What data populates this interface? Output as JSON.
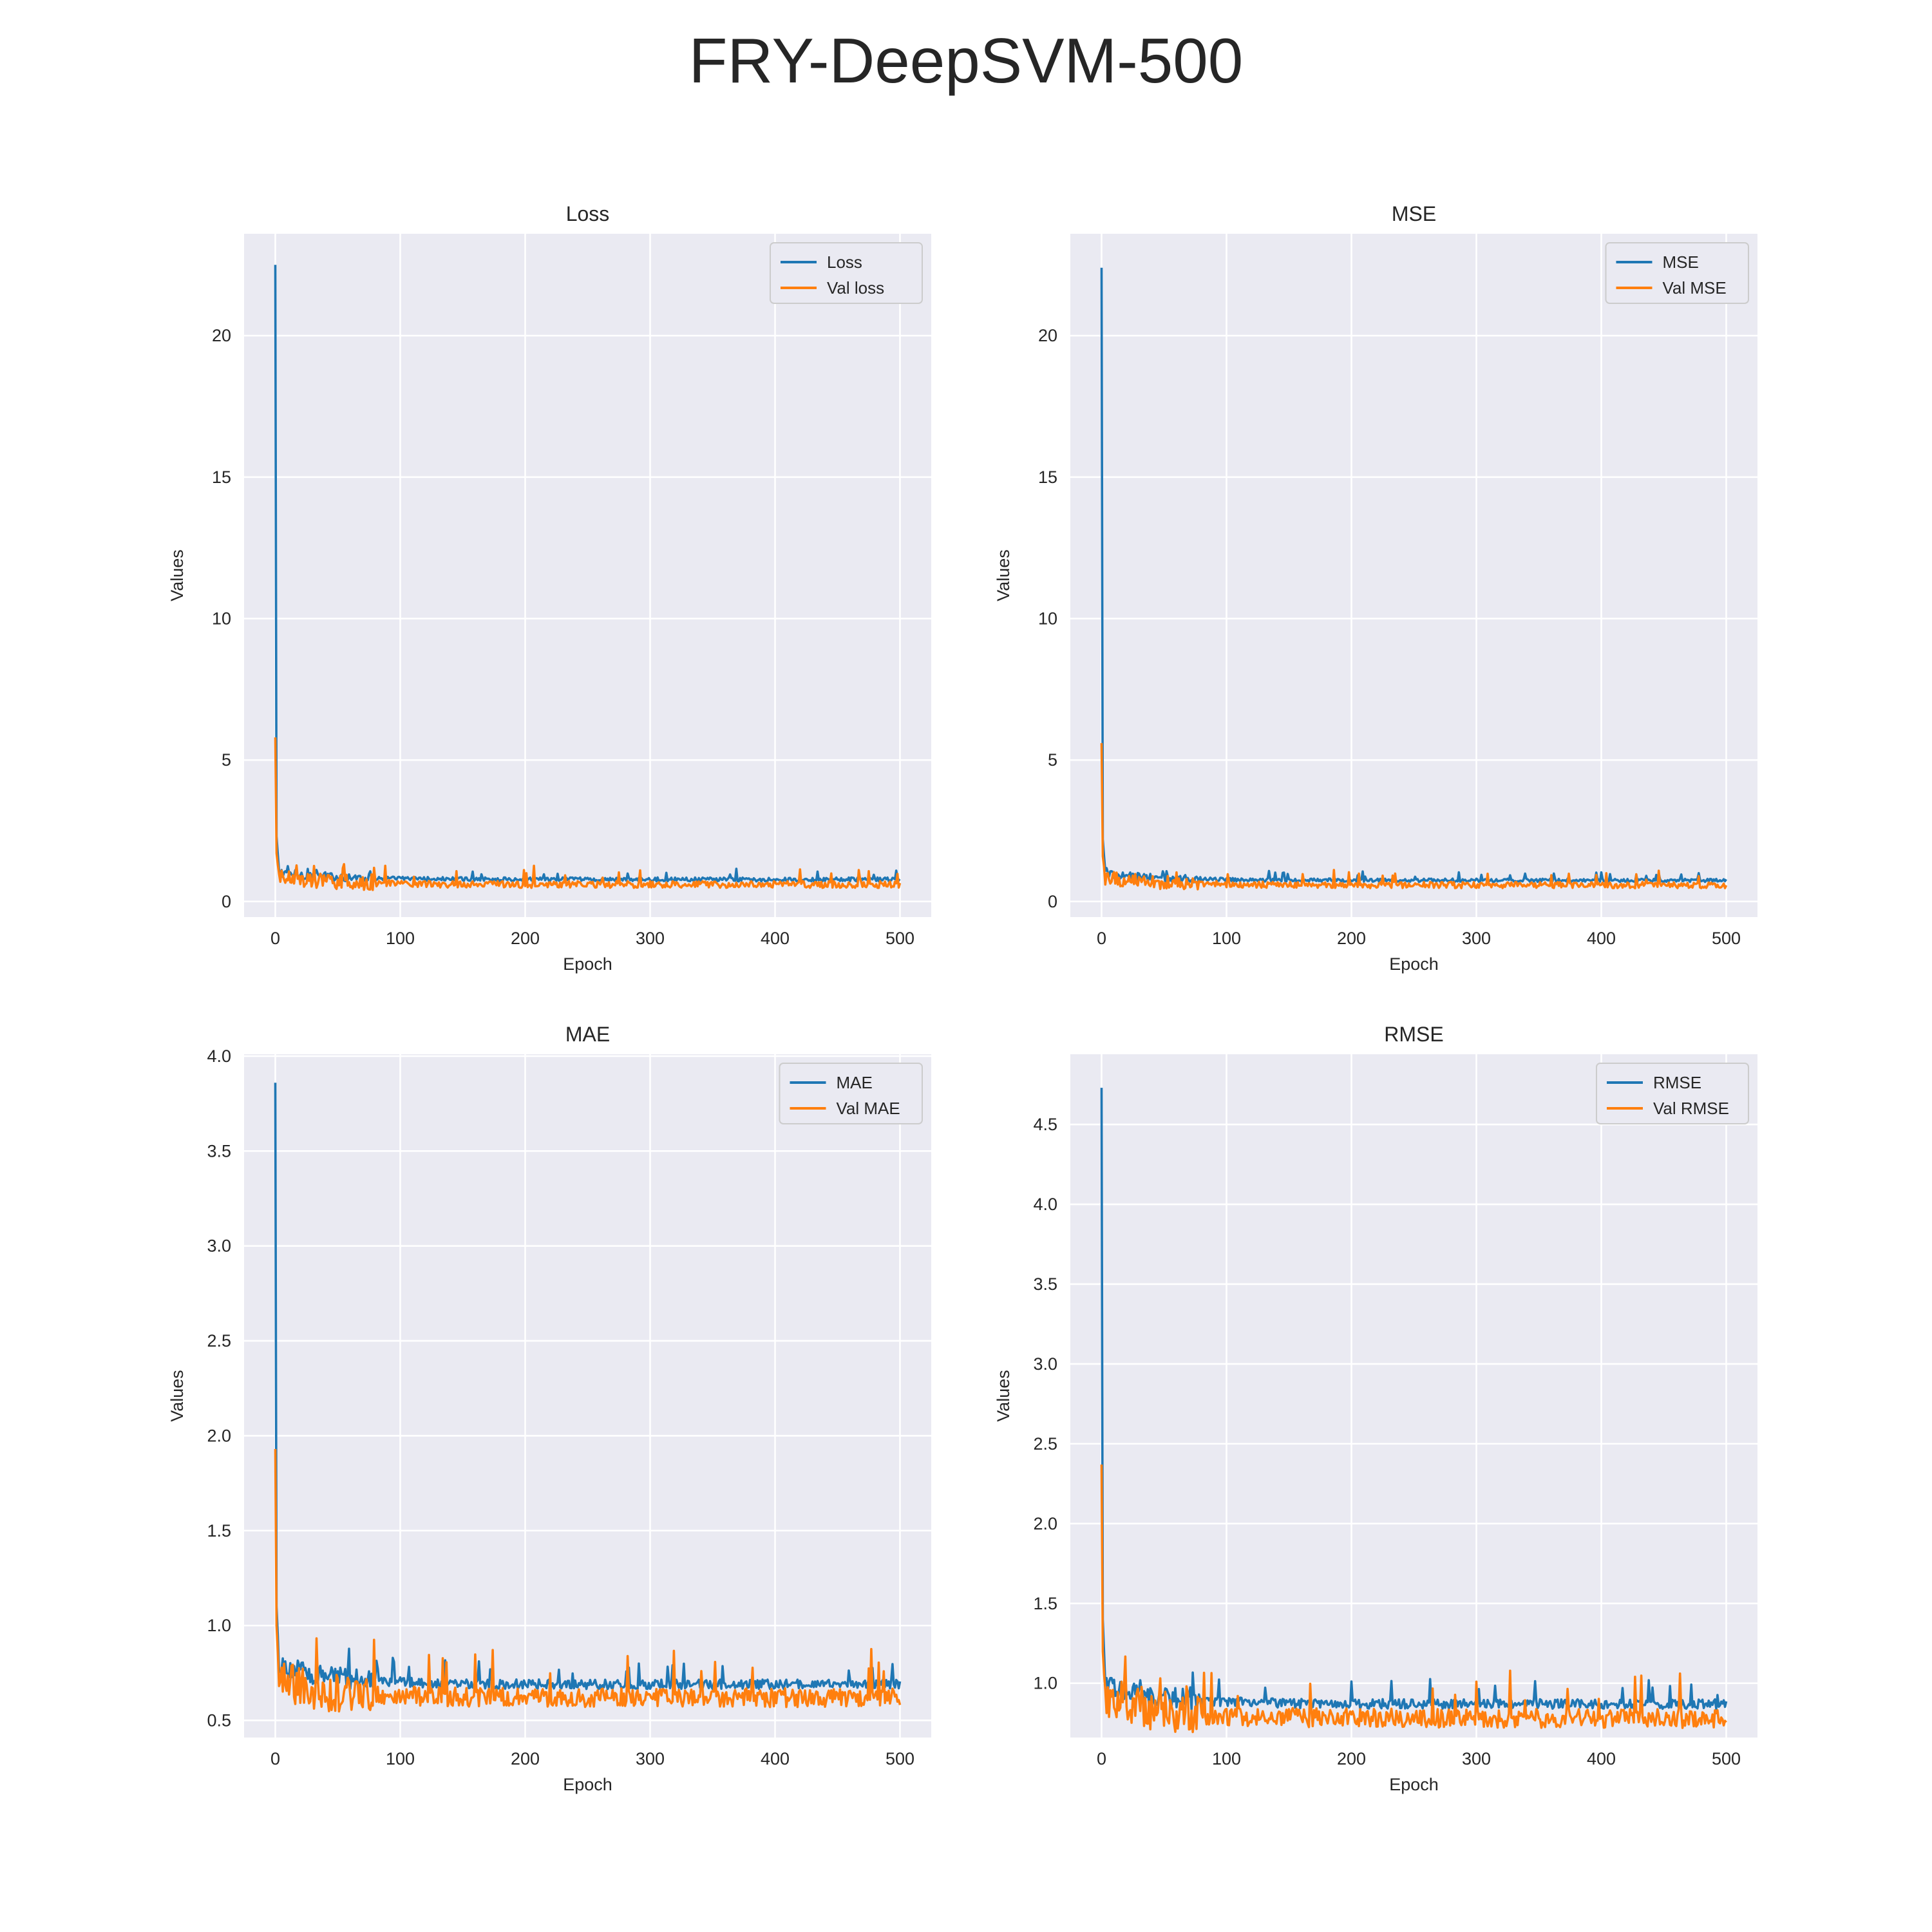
{
  "figure": {
    "suptitle": "FRY-DeepSVM-500"
  },
  "colors": {
    "train": "#1f77b4",
    "val": "#ff7f0e",
    "panel_bg": "#eaeaf2",
    "grid": "#ffffff"
  },
  "chart_data": [
    {
      "type": "line",
      "title": "Loss",
      "xlabel": "Epoch",
      "ylabel": "Values",
      "xlim": [
        -25,
        525
      ],
      "ylim": [
        -0.55,
        23.6
      ],
      "xticks": [
        0,
        100,
        200,
        300,
        400,
        500
      ],
      "yticks": [
        0,
        5,
        10,
        15,
        20
      ],
      "grid": true,
      "legend_position": "top-right",
      "series": [
        {
          "name": "Loss",
          "color": "#1f77b4",
          "start": 22.5,
          "second": 2.3,
          "plateau_start": 1.05,
          "plateau_end": 0.78,
          "noise": 0.07
        },
        {
          "name": "Val loss",
          "color": "#ff7f0e",
          "start": 5.8,
          "second": 1.7,
          "plateau_start": 0.9,
          "plateau_end": 0.6,
          "noise": 0.12
        }
      ]
    },
    {
      "type": "line",
      "title": "MSE",
      "xlabel": "Epoch",
      "ylabel": "Values",
      "xlim": [
        -25,
        525
      ],
      "ylim": [
        -0.55,
        23.6
      ],
      "xticks": [
        0,
        100,
        200,
        300,
        400,
        500
      ],
      "yticks": [
        0,
        5,
        10,
        15,
        20
      ],
      "grid": true,
      "legend_position": "top-right",
      "series": [
        {
          "name": "MSE",
          "color": "#1f77b4",
          "start": 22.4,
          "second": 2.2,
          "plateau_start": 1.0,
          "plateau_end": 0.75,
          "noise": 0.06
        },
        {
          "name": "Val MSE",
          "color": "#ff7f0e",
          "start": 5.6,
          "second": 1.6,
          "plateau_start": 0.85,
          "plateau_end": 0.58,
          "noise": 0.11
        }
      ]
    },
    {
      "type": "line",
      "title": "MAE",
      "xlabel": "Epoch",
      "ylabel": "Values",
      "xlim": [
        -25,
        525
      ],
      "ylim": [
        0.41,
        4.01
      ],
      "xticks": [
        0,
        100,
        200,
        300,
        400,
        500
      ],
      "yticks": [
        0.5,
        1.0,
        1.5,
        2.0,
        2.5,
        3.0,
        3.5,
        4.0
      ],
      "grid": true,
      "legend_position": "top-right",
      "series": [
        {
          "name": "MAE",
          "color": "#1f77b4",
          "start": 3.86,
          "second": 1.1,
          "plateau_start": 0.8,
          "plateau_end": 0.69,
          "noise": 0.025
        },
        {
          "name": "Val MAE",
          "color": "#ff7f0e",
          "start": 1.93,
          "second": 1.0,
          "plateau_start": 0.72,
          "plateau_end": 0.62,
          "noise": 0.05
        }
      ]
    },
    {
      "type": "line",
      "title": "RMSE",
      "xlabel": "Epoch",
      "ylabel": "Values",
      "xlim": [
        -25,
        525
      ],
      "ylim": [
        0.66,
        4.94
      ],
      "xticks": [
        0,
        100,
        200,
        300,
        400,
        500
      ],
      "yticks": [
        1.0,
        1.5,
        2.0,
        2.5,
        3.0,
        3.5,
        4.0,
        4.5
      ],
      "grid": true,
      "legend_position": "top-right",
      "series": [
        {
          "name": "RMSE",
          "color": "#1f77b4",
          "start": 4.73,
          "second": 1.4,
          "plateau_start": 1.0,
          "plateau_end": 0.87,
          "noise": 0.03
        },
        {
          "name": "Val RMSE",
          "color": "#ff7f0e",
          "start": 2.37,
          "second": 1.2,
          "plateau_start": 0.92,
          "plateau_end": 0.78,
          "noise": 0.06
        }
      ]
    }
  ]
}
